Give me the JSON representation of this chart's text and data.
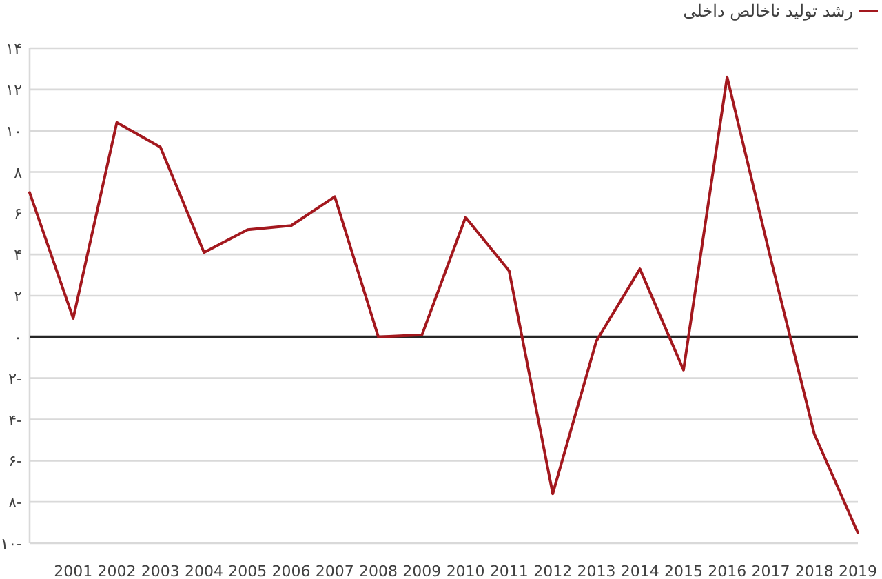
{
  "chart_data": {
    "type": "line",
    "categories": [
      null,
      "2001",
      "2002",
      "2003",
      "2004",
      "2005",
      "2006",
      "2007",
      "2008",
      "2009",
      "2010",
      "2011",
      "2012",
      "2013",
      "2014",
      "2015",
      "2016",
      "2017",
      "2018",
      "2019"
    ],
    "series": [
      {
        "name": "رشد تولید ناخالص داخلی",
        "color": "#a3181e",
        "values": [
          7.0,
          0.9,
          10.4,
          9.2,
          4.1,
          5.2,
          5.4,
          6.8,
          0.0,
          0.1,
          5.8,
          3.2,
          -7.6,
          -0.2,
          3.3,
          -1.6,
          12.6,
          3.8,
          -4.7,
          -9.5
        ]
      }
    ],
    "ylim": [
      -10,
      14
    ],
    "yticks": [
      {
        "value": 14,
        "label": "۱۴"
      },
      {
        "value": 12,
        "label": "۱۲"
      },
      {
        "value": 10,
        "label": "۱۰"
      },
      {
        "value": 8,
        "label": "۸"
      },
      {
        "value": 6,
        "label": "۶"
      },
      {
        "value": 4,
        "label": "۴"
      },
      {
        "value": 2,
        "label": "۲"
      },
      {
        "value": 0,
        "label": "۰"
      },
      {
        "value": -2,
        "label": "۲-"
      },
      {
        "value": -4,
        "label": "۴-"
      },
      {
        "value": -6,
        "label": "۶-"
      },
      {
        "value": -8,
        "label": "۸-"
      },
      {
        "value": -10,
        "label": "۱۰-"
      }
    ],
    "grid": "y",
    "legend": "top right",
    "ref_lines": [
      {
        "axis": "y",
        "value": 0,
        "color": "#262626"
      }
    ]
  }
}
